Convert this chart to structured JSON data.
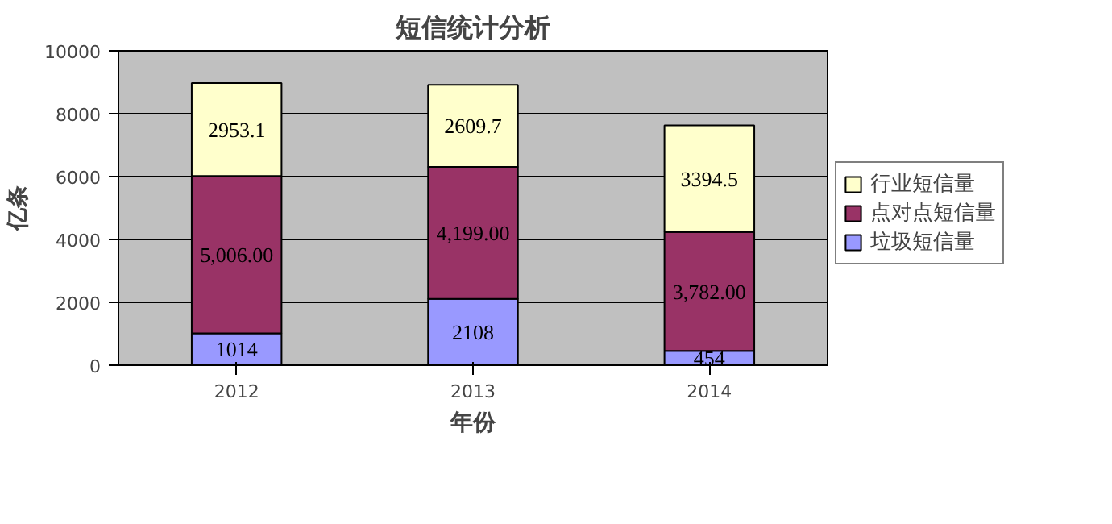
{
  "chart_data": {
    "type": "bar",
    "title": "短信统计分析",
    "xlabel": "年份",
    "ylabel": "亿条",
    "categories": [
      "2012",
      "2013",
      "2014"
    ],
    "stacked": true,
    "series": [
      {
        "name": "垃圾短信量",
        "color": "#9999ff",
        "values": [
          1014,
          2108,
          454
        ],
        "value_labels": [
          "1014",
          "2108",
          "454"
        ]
      },
      {
        "name": "点对点短信量",
        "color": "#993366",
        "values": [
          5006,
          4199,
          3782
        ],
        "value_labels": [
          "5,006.00",
          "4,199.00",
          "3,782.00"
        ]
      },
      {
        "name": "行业短信量",
        "color": "#ffffcc",
        "values": [
          2953.1,
          2609.7,
          3394.5
        ],
        "value_labels": [
          "2953.1",
          "2609.7",
          "3394.5"
        ]
      }
    ],
    "ylim": [
      0,
      10000
    ],
    "yticks": [
      0,
      2000,
      4000,
      6000,
      8000,
      10000
    ],
    "grid": "y",
    "legend": "right"
  }
}
